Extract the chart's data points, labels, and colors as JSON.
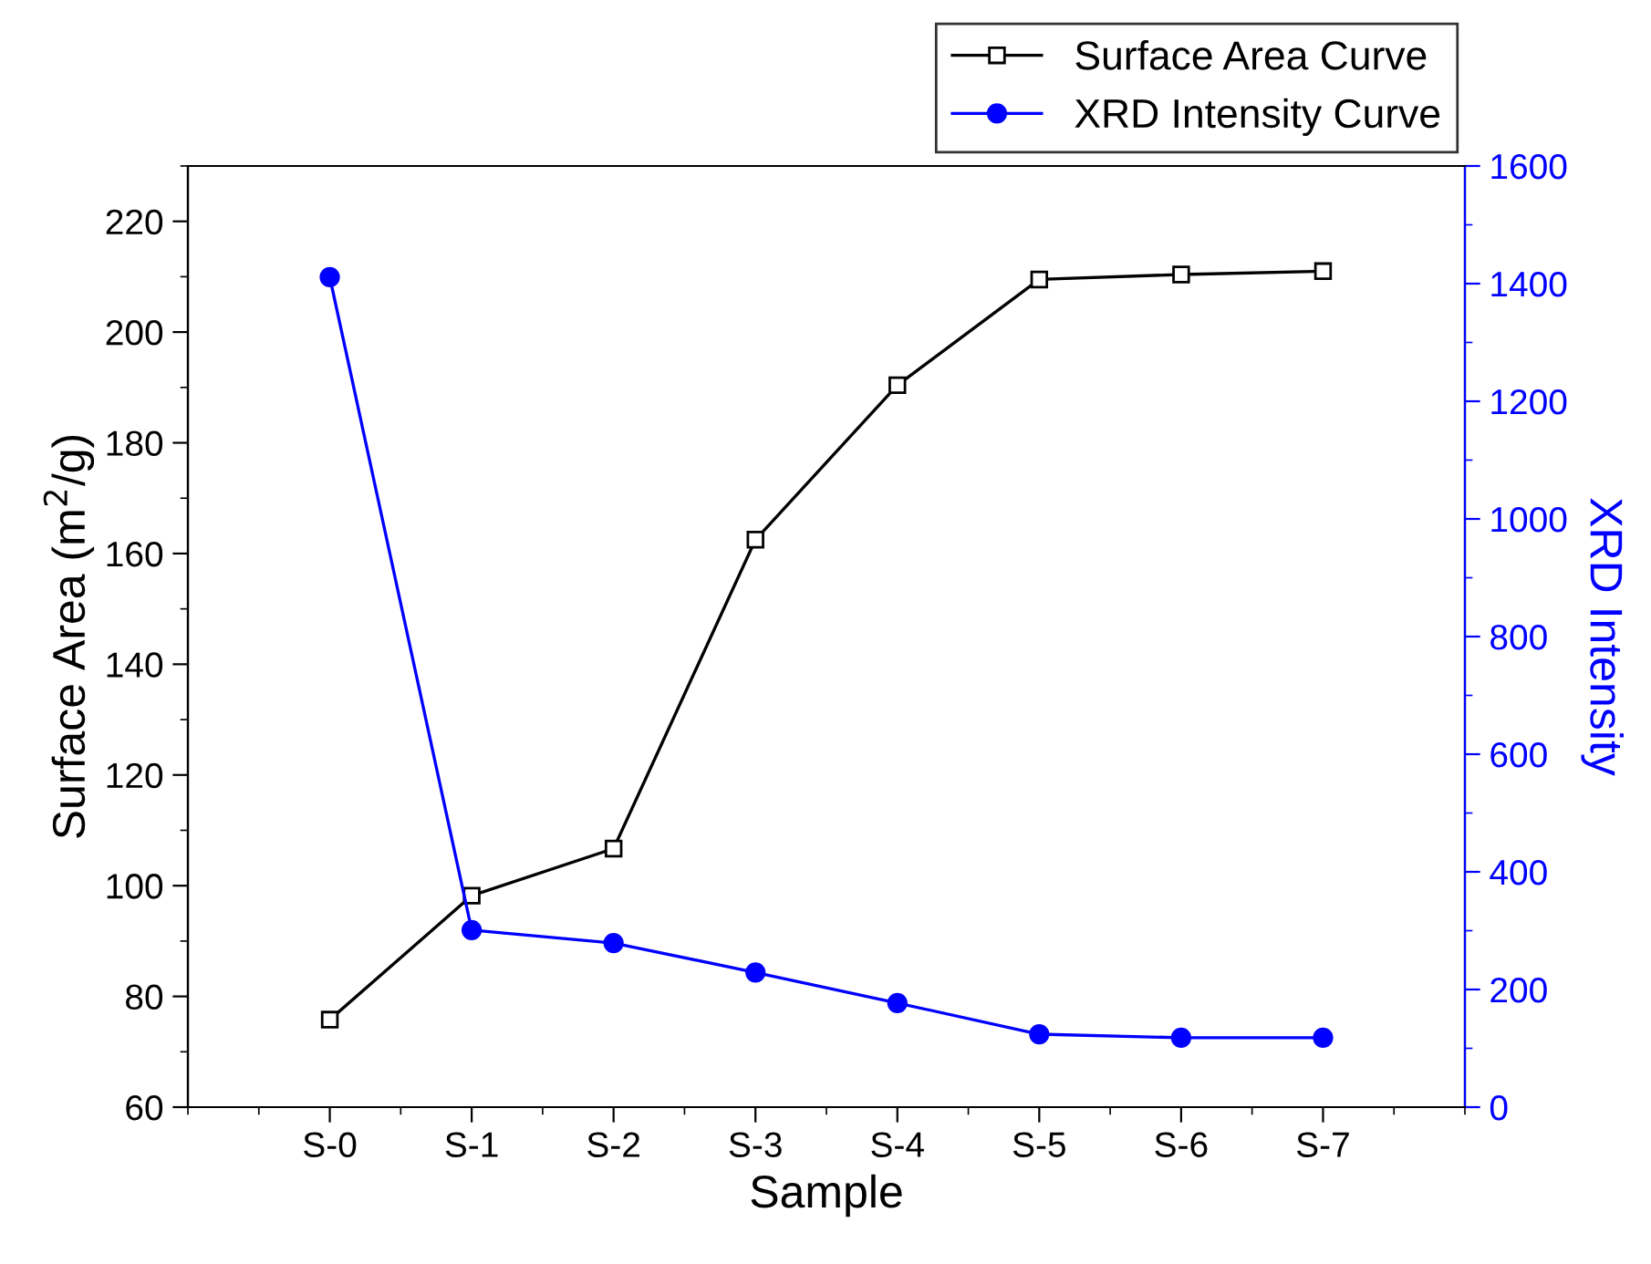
{
  "chart_data": {
    "type": "line",
    "xlabel": "Sample",
    "ylabel": "Surface Area (m$^{2}$/g)",
    "y2label": "XRD Intensity",
    "categories": [
      "S-0",
      "S-1",
      "S-2",
      "S-3",
      "S-4",
      "S-5",
      "S-6",
      "S-7"
    ],
    "series": [
      {
        "name": "Surface Area Curve",
        "color": "#000000",
        "marker": "square",
        "values": [
          75.8,
          98.2,
          106.7,
          162.5,
          190.4,
          209.5,
          210.4,
          211.0
        ]
      },
      {
        "name": "XRD Intensity Curve",
        "color": "#0000ff",
        "marker": "circle",
        "axis": "y2",
        "values": [
          1411,
          301,
          279,
          229,
          177,
          124,
          118,
          118
        ]
      }
    ],
    "ylim": [
      60,
      230
    ],
    "yticks": [
      60,
      80,
      100,
      120,
      140,
      160,
      180,
      200,
      220
    ],
    "y2lim": [
      0,
      1600
    ],
    "y2ticks": [
      0,
      200,
      400,
      600,
      800,
      1000,
      1200,
      1400,
      1600
    ],
    "grid": false,
    "legend": "top right",
    "line_style": "solid"
  }
}
